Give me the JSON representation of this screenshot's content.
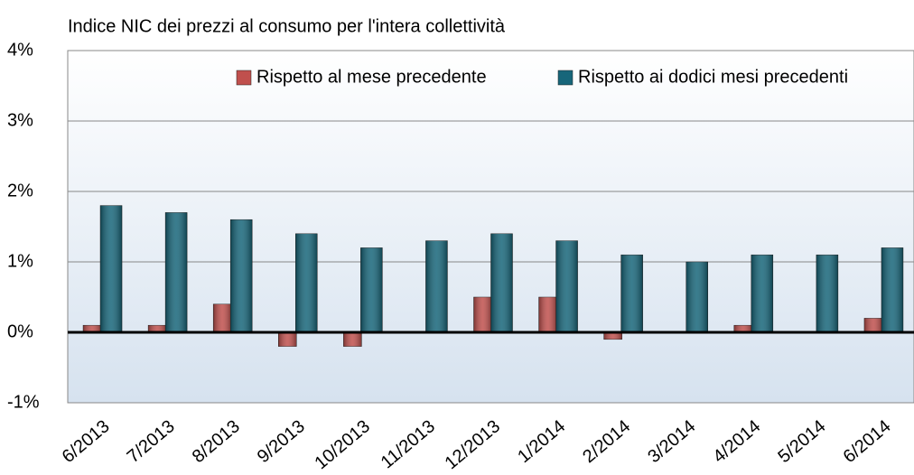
{
  "chart_data": {
    "type": "bar",
    "title": "Indice NIC dei prezzi al consumo per l'intera collettività",
    "categories": [
      "6/2013",
      "7/2013",
      "8/2013",
      "9/2013",
      "10/2013",
      "11/2013",
      "12/2013",
      "1/2014",
      "2/2014",
      "3/2014",
      "4/2014",
      "5/2014",
      "6/2014"
    ],
    "series": [
      {
        "name": "Rispetto al mese precedente",
        "color": "#c0504d",
        "values": [
          0.1,
          0.1,
          0.4,
          -0.2,
          -0.2,
          0,
          0.5,
          0.5,
          -0.1,
          0,
          0.1,
          0,
          0.2
        ]
      },
      {
        "name": "Rispetto ai dodici mesi precedenti",
        "color": "#17667a",
        "values": [
          1.8,
          1.7,
          1.6,
          1.4,
          1.2,
          1.3,
          1.4,
          1.3,
          1.1,
          1.0,
          1.1,
          1.1,
          1.2
        ]
      }
    ],
    "ylim": [
      -1,
      4
    ],
    "yticks": [
      {
        "value": -1,
        "label": "-1%"
      },
      {
        "value": 0,
        "label": "0%"
      },
      {
        "value": 1,
        "label": "1%"
      },
      {
        "value": 2,
        "label": "2%"
      },
      {
        "value": 3,
        "label": "3%"
      },
      {
        "value": 4,
        "label": "4%"
      }
    ],
    "grid": true,
    "legend": "upper right"
  }
}
